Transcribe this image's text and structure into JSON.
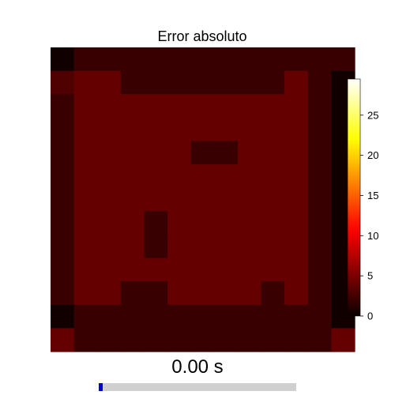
{
  "chart_data": {
    "type": "heatmap",
    "title": "Error absoluto",
    "xlabel": "",
    "ylabel": "",
    "colormap": "hot",
    "color_range": [
      0,
      29.5
    ],
    "colorbar": {
      "ticks": [
        0,
        5,
        10,
        15,
        20,
        25
      ],
      "tick_labels": [
        "0",
        "5",
        "10",
        "15",
        "20",
        "25"
      ]
    },
    "grid": false,
    "values": [
      [
        0.3,
        2,
        2,
        2,
        2,
        2,
        2,
        2,
        2,
        2,
        2,
        2,
        2
      ],
      [
        3,
        4,
        4,
        2,
        2,
        2,
        2,
        2,
        2,
        2,
        4,
        2,
        0.3
      ],
      [
        2,
        4,
        4,
        4,
        4,
        4,
        4,
        4,
        4,
        4,
        4,
        2,
        0.3
      ],
      [
        2,
        4,
        4,
        4,
        4,
        4,
        4,
        4,
        4,
        4,
        4,
        2,
        0.3
      ],
      [
        2,
        4,
        4,
        4,
        4,
        4,
        2,
        2,
        4,
        4,
        4,
        2,
        0.3
      ],
      [
        2,
        4,
        4,
        4,
        4,
        4,
        4,
        4,
        4,
        4,
        4,
        2,
        0.3
      ],
      [
        2,
        4,
        4,
        4,
        4,
        4,
        4,
        4,
        4,
        4,
        4,
        2,
        0.3
      ],
      [
        2,
        4,
        4,
        4,
        2,
        4,
        4,
        4,
        4,
        4,
        4,
        2,
        0.3
      ],
      [
        2,
        4,
        4,
        4,
        2,
        4,
        4,
        4,
        4,
        4,
        4,
        2,
        0.3
      ],
      [
        2,
        4,
        4,
        4,
        4,
        4,
        4,
        4,
        4,
        4,
        4,
        2,
        0.3
      ],
      [
        2,
        4,
        4,
        2,
        2,
        4,
        4,
        4,
        4,
        2,
        4,
        2,
        0.3
      ],
      [
        0.3,
        2,
        2,
        2,
        2,
        2,
        2,
        2,
        2,
        2,
        2,
        2,
        0.3
      ],
      [
        4,
        2,
        2,
        2,
        2,
        2,
        2,
        2,
        2,
        2,
        2,
        2,
        4
      ]
    ]
  },
  "time_label": "0.00 s",
  "progress": 0.0
}
